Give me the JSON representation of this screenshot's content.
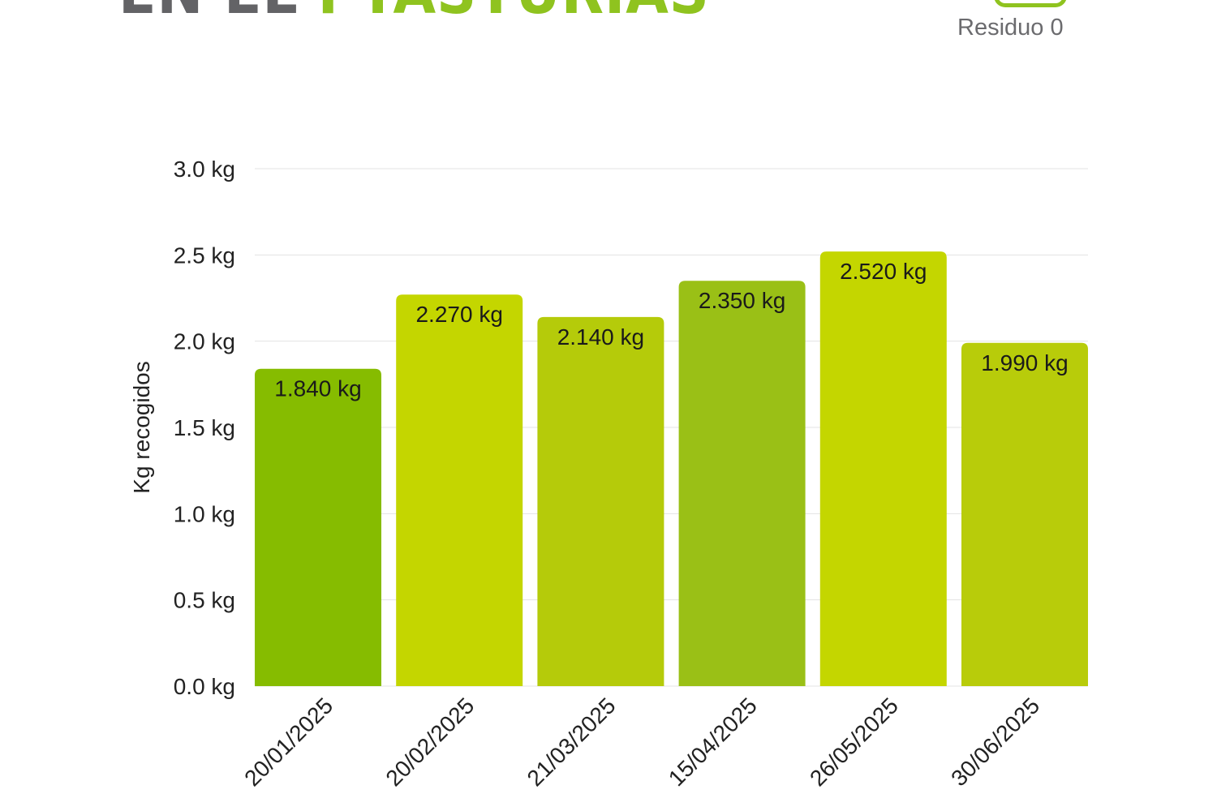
{
  "header": {
    "title_part1": "EN EL",
    "title_part2": "PTASTURIAS",
    "logo_text": "Residuo 0"
  },
  "chart_data": {
    "type": "bar",
    "title": "",
    "xlabel": "",
    "ylabel": "Kg recogidos",
    "ylim": [
      0,
      3.0
    ],
    "yticks": [
      "0.0 kg",
      "0.5 kg",
      "1.0 kg",
      "1.5 kg",
      "2.0 kg",
      "2.5 kg",
      "3.0 kg"
    ],
    "ytick_values": [
      0,
      0.5,
      1.0,
      1.5,
      2.0,
      2.5,
      3.0
    ],
    "categories": [
      "20/01/2025",
      "20/02/2025",
      "21/03/2025",
      "15/04/2025",
      "26/05/2025",
      "30/06/2025"
    ],
    "values": [
      1.84,
      2.27,
      2.14,
      2.35,
      2.52,
      1.99
    ],
    "data_labels": [
      "1.840 kg",
      "2.270 kg",
      "2.140 kg",
      "2.350 kg",
      "2.520 kg",
      "1.990 kg"
    ],
    "bar_colors": [
      "#86bc00",
      "#c4d600",
      "#b5cb0a",
      "#9ac016",
      "#c4d600",
      "#b8cc0a"
    ],
    "grid": true
  }
}
